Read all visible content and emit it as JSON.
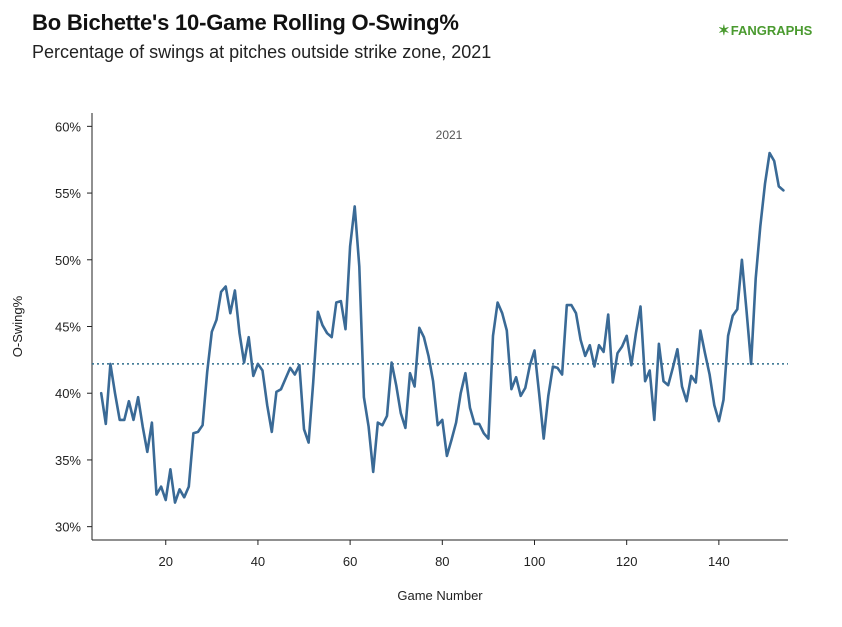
{
  "header": {
    "title": "Bo Bichette's 10-Game Rolling O-Swing%",
    "subtitle": "Percentage of swings at pitches outside strike zone, 2021"
  },
  "logo": {
    "mark": "✶",
    "text_a": "FAN",
    "text_b": "GRAPHS"
  },
  "colors": {
    "line": "#3a6a96",
    "reference": "#2f6d8c",
    "axis": "#222222"
  },
  "chart_data": {
    "type": "line",
    "title": "Bo Bichette's 10-Game Rolling O-Swing%",
    "subtitle": "Percentage of swings at pitches outside strike zone, 2021",
    "xlabel": "Game Number",
    "ylabel": "O-Swing%",
    "xlim": [
      4,
      155
    ],
    "ylim": [
      29,
      61
    ],
    "x_ticks": [
      20,
      40,
      60,
      80,
      100,
      120,
      140
    ],
    "y_ticks": [
      30,
      35,
      40,
      45,
      50,
      55,
      60
    ],
    "y_tick_suffix": "%",
    "grid": false,
    "legend": "none",
    "annotation": "2021",
    "reference_line": 42.2,
    "series": [
      {
        "x": [
          6,
          7,
          8,
          9,
          10,
          11,
          12,
          13,
          14,
          15,
          16,
          17,
          18,
          19,
          20,
          21,
          22,
          23,
          24,
          25,
          26,
          27,
          28,
          29,
          30,
          31,
          32,
          33,
          34,
          35,
          36,
          37,
          38,
          39,
          40,
          41,
          42,
          43,
          44,
          45,
          46,
          47,
          48,
          49,
          50,
          51,
          52,
          53,
          54,
          55,
          56,
          57,
          58,
          59,
          60,
          61,
          62,
          63,
          64,
          65,
          66,
          67,
          68,
          69,
          70,
          71,
          72,
          73,
          74,
          75,
          76,
          77,
          78,
          79,
          80,
          81,
          82,
          83,
          84,
          85,
          86,
          87,
          88,
          89,
          90,
          91,
          92,
          93,
          94,
          95,
          96,
          97,
          98,
          99,
          100,
          101,
          102,
          103,
          104,
          105,
          106,
          107,
          108,
          109,
          110,
          111,
          112,
          113,
          114,
          115,
          116,
          117,
          118,
          119,
          120,
          121,
          122,
          123,
          124,
          125,
          126,
          127,
          128,
          129,
          130,
          131,
          132,
          133,
          134,
          135,
          136,
          137,
          138,
          139,
          140,
          141,
          142,
          143,
          144,
          145,
          146,
          147,
          148,
          149,
          150,
          151,
          152,
          153,
          154
        ],
        "values": [
          40.0,
          37.7,
          42.2,
          40.0,
          38.0,
          38.0,
          39.4,
          38.0,
          39.7,
          37.5,
          35.6,
          37.8,
          32.4,
          33.0,
          32.0,
          34.3,
          31.8,
          32.8,
          32.2,
          33.0,
          37.0,
          37.1,
          37.6,
          41.6,
          44.6,
          45.5,
          47.6,
          48.0,
          46.0,
          47.7,
          44.5,
          42.3,
          44.2,
          41.3,
          42.2,
          41.7,
          39.1,
          37.1,
          40.1,
          40.3,
          41.1,
          41.9,
          41.4,
          42.1,
          37.3,
          36.3,
          40.8,
          46.1,
          45.1,
          44.5,
          44.2,
          46.8,
          46.9,
          44.8,
          51.0,
          54.0,
          49.5,
          39.7,
          37.5,
          34.1,
          37.8,
          37.6,
          38.3,
          42.3,
          40.6,
          38.5,
          37.4,
          41.5,
          40.5,
          44.9,
          44.2,
          42.8,
          40.9,
          37.6,
          38.0,
          35.3,
          36.5,
          37.8,
          40.0,
          41.5,
          38.9,
          37.7,
          37.7,
          37.0,
          36.6,
          44.3,
          46.8,
          46.0,
          44.7,
          40.3,
          41.2,
          39.8,
          40.4,
          42.1,
          43.2,
          40.0,
          36.6,
          39.8,
          42.0,
          41.9,
          41.4,
          46.6,
          46.6,
          46.0,
          44.0,
          42.8,
          43.6,
          42.0,
          43.6,
          43.1,
          45.9,
          40.8,
          43.0,
          43.5,
          44.3,
          42.1,
          44.5,
          46.5,
          40.9,
          41.7,
          38.0,
          43.7,
          40.9,
          40.6,
          41.9,
          43.3,
          40.5,
          39.4,
          41.3,
          40.8,
          44.7,
          43.0,
          41.4,
          39.1,
          37.9,
          39.5,
          44.3,
          45.8,
          46.3,
          50.0,
          46.2,
          42.2,
          48.6,
          52.5,
          55.7,
          58.0,
          57.4,
          55.5,
          55.2
        ]
      }
    ]
  }
}
